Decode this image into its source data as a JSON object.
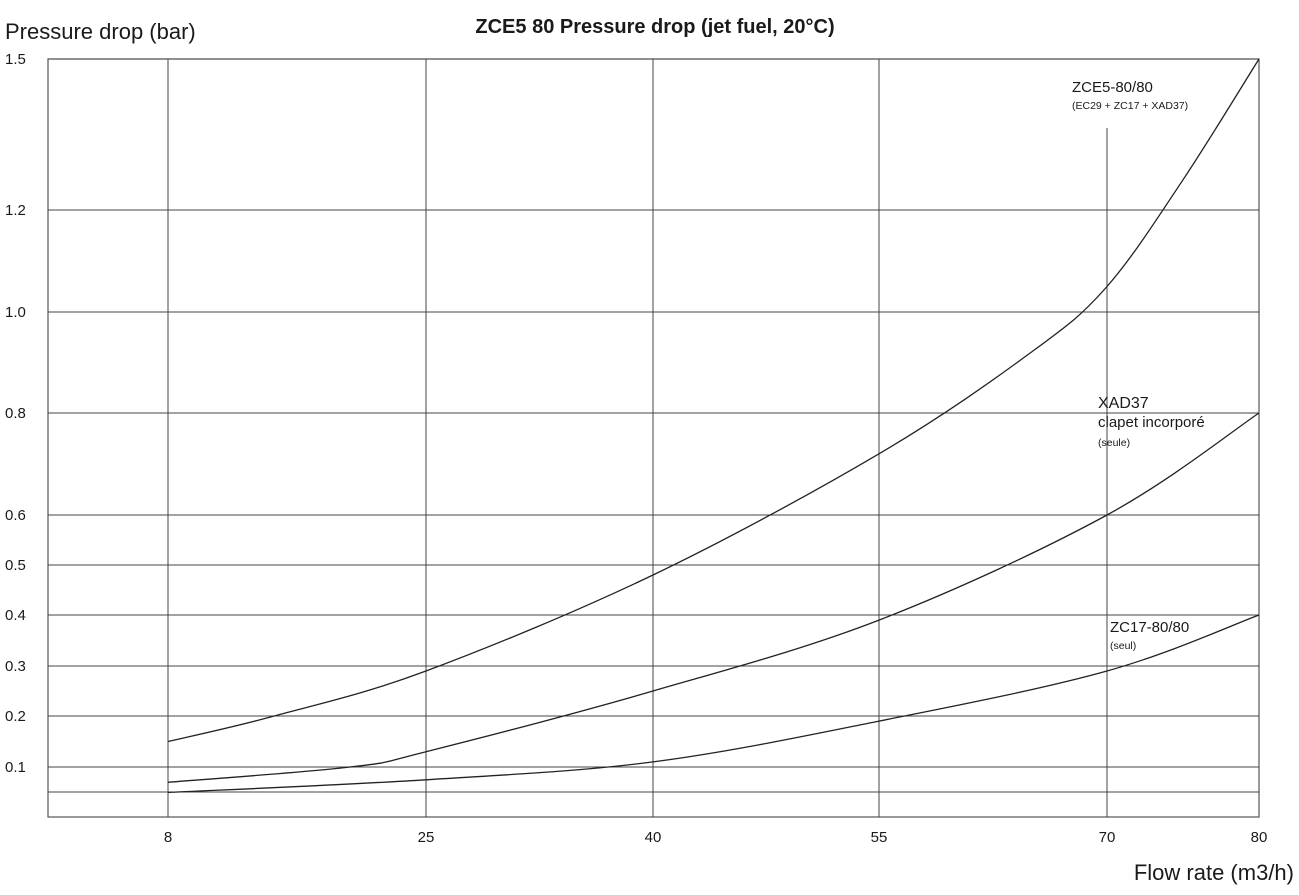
{
  "chart_data": {
    "type": "line",
    "title": "ZCE5 80  Pressure drop (jet fuel, 20°C)",
    "ylabel": "Pressure drop (bar)",
    "xlabel": "Flow rate (m3/h)",
    "x_ticks": [
      "8",
      "25",
      "40",
      "55",
      "70",
      "80"
    ],
    "y_ticks": [
      "1.5",
      "1.2",
      "1.0",
      "0.8",
      "0.6",
      "0.5",
      "0.4",
      "0.3",
      "0.2",
      "0.1"
    ],
    "grid": true,
    "series": [
      {
        "name": "ZCE5-80/80",
        "sub_label": "(EC29 + ZC17 + XAD37)",
        "points": [
          [
            8,
            0.15
          ],
          [
            15,
            0.2
          ],
          [
            25,
            0.29
          ],
          [
            40,
            0.48
          ],
          [
            55,
            0.72
          ],
          [
            65,
            0.92
          ],
          [
            70,
            1.05
          ],
          [
            75,
            1.26
          ],
          [
            80,
            1.5
          ]
        ]
      },
      {
        "name": "XAD37",
        "sub_label": "clapet incorporé",
        "sub_label2": "(seule)",
        "points": [
          [
            8,
            0.07
          ],
          [
            20,
            0.1
          ],
          [
            25,
            0.13
          ],
          [
            40,
            0.25
          ],
          [
            55,
            0.39
          ],
          [
            70,
            0.6
          ],
          [
            80,
            0.8
          ]
        ]
      },
      {
        "name": "ZC17-80/80",
        "sub_label": "(seul)",
        "points": [
          [
            8,
            0.05
          ],
          [
            25,
            0.075
          ],
          [
            40,
            0.11
          ],
          [
            55,
            0.19
          ],
          [
            70,
            0.29
          ],
          [
            80,
            0.4
          ]
        ]
      }
    ]
  }
}
